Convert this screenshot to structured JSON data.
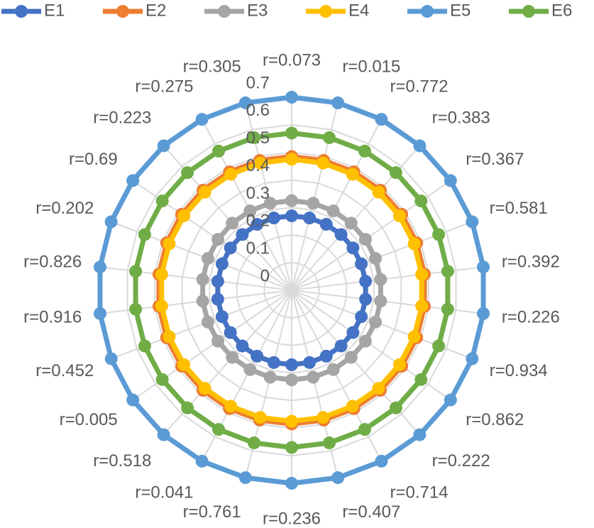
{
  "chart_data": {
    "type": "radar",
    "categories": [
      "r=0.073",
      "r=0.015",
      "r=0.772",
      "r=0.383",
      "r=0.367",
      "r=0.581",
      "r=0.392",
      "r=0.226",
      "r=0.934",
      "r=0.862",
      "r=0.222",
      "r=0.714",
      "r=0.407",
      "r=0.236",
      "r=0.761",
      "r=0.041",
      "r=0.518",
      "r=0.005",
      "r=0.452",
      "r=0.916",
      "r=0.826",
      "r=0.202",
      "r=0.69",
      "r=0.223",
      "r=0.275",
      "r=0.305"
    ],
    "series": [
      {
        "name": "E1",
        "color": "#4472c4",
        "values": [
          0.27,
          0.27,
          0.27,
          0.27,
          0.27,
          0.27,
          0.27,
          0.27,
          0.27,
          0.27,
          0.27,
          0.27,
          0.27,
          0.27,
          0.27,
          0.27,
          0.27,
          0.27,
          0.27,
          0.27,
          0.27,
          0.27,
          0.27,
          0.27,
          0.27,
          0.27
        ]
      },
      {
        "name": "E2",
        "color": "#ed7d31",
        "values": [
          0.485,
          0.485,
          0.485,
          0.485,
          0.485,
          0.485,
          0.485,
          0.485,
          0.485,
          0.485,
          0.485,
          0.485,
          0.485,
          0.485,
          0.485,
          0.485,
          0.485,
          0.485,
          0.485,
          0.485,
          0.485,
          0.485,
          0.485,
          0.485,
          0.485,
          0.485
        ]
      },
      {
        "name": "E3",
        "color": "#a5a5a5",
        "values": [
          0.325,
          0.325,
          0.325,
          0.325,
          0.325,
          0.325,
          0.325,
          0.325,
          0.325,
          0.325,
          0.325,
          0.325,
          0.325,
          0.325,
          0.325,
          0.325,
          0.325,
          0.325,
          0.325,
          0.325,
          0.325,
          0.325,
          0.325,
          0.325,
          0.325,
          0.325
        ]
      },
      {
        "name": "E4",
        "color": "#ffc000",
        "values": [
          0.475,
          0.475,
          0.475,
          0.475,
          0.475,
          0.475,
          0.475,
          0.475,
          0.475,
          0.475,
          0.475,
          0.475,
          0.475,
          0.475,
          0.475,
          0.475,
          0.475,
          0.475,
          0.475,
          0.475,
          0.475,
          0.475,
          0.475,
          0.475,
          0.475,
          0.475
        ]
      },
      {
        "name": "E5",
        "color": "#5b9bd5",
        "values": [
          0.7,
          0.7,
          0.7,
          0.7,
          0.7,
          0.7,
          0.7,
          0.7,
          0.7,
          0.7,
          0.7,
          0.7,
          0.7,
          0.7,
          0.7,
          0.7,
          0.7,
          0.7,
          0.7,
          0.7,
          0.7,
          0.7,
          0.7,
          0.7,
          0.7,
          0.7
        ]
      },
      {
        "name": "E6",
        "color": "#70ad47",
        "values": [
          0.57,
          0.57,
          0.57,
          0.57,
          0.57,
          0.57,
          0.57,
          0.57,
          0.57,
          0.57,
          0.57,
          0.57,
          0.57,
          0.57,
          0.57,
          0.57,
          0.57,
          0.57,
          0.57,
          0.57,
          0.57,
          0.57,
          0.57,
          0.57,
          0.57,
          0.57
        ]
      }
    ],
    "ylim": [
      0,
      0.7
    ],
    "yticks": [
      0,
      0.1,
      0.2,
      0.3,
      0.4,
      0.5,
      0.6,
      0.7
    ],
    "grid": true,
    "legend": "top"
  }
}
